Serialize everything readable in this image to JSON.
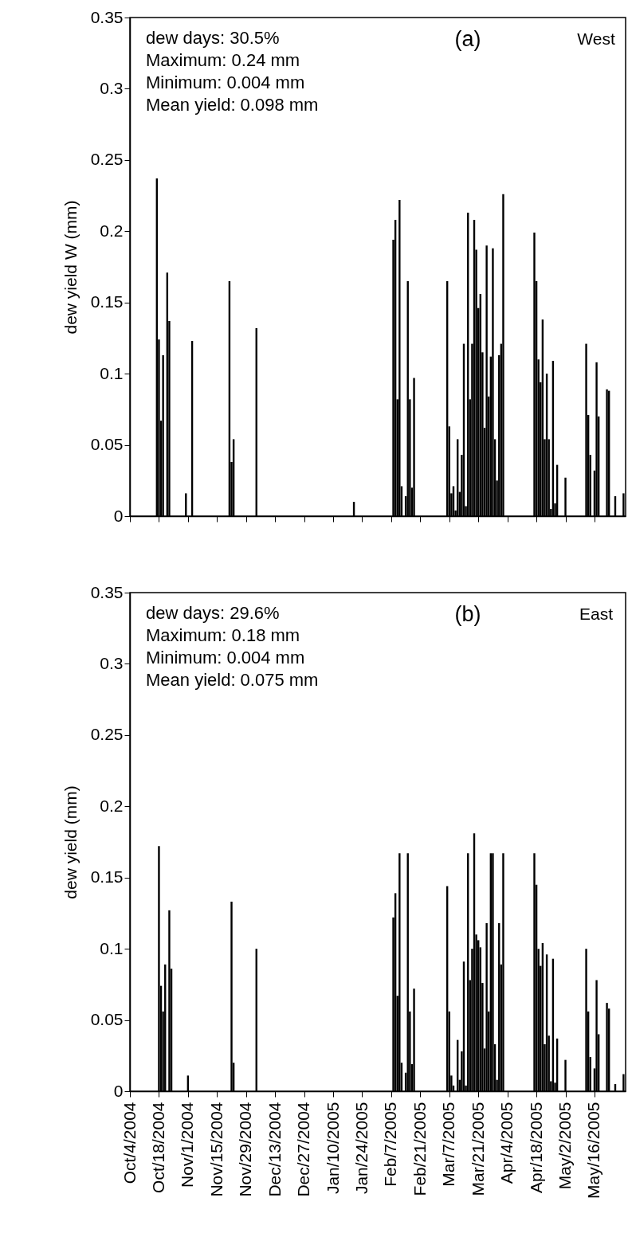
{
  "chart_data": [
    {
      "type": "bar",
      "ylabel": "dew yield W (mm)",
      "color": "#000000",
      "tick_labels": "y",
      "grid": false,
      "annotations": [
        "dew days:   30.5%",
        "Maximum:   0.24 mm",
        "Minimum:    0.004 mm",
        "Mean yield: 0.098 mm",
        "(a)",
        "West"
      ],
      "xlim": [
        "2004-10-04",
        "2005-05-31"
      ],
      "ylim": [
        0,
        0.35
      ],
      "yticks": [
        0,
        0.05,
        0.1,
        0.15,
        0.2,
        0.25,
        0.3,
        0.35
      ],
      "xticks": [
        {
          "value": "2004-10-04",
          "label": null
        },
        {
          "value": "2004-10-18",
          "label": null
        },
        {
          "value": "2004-11-01",
          "label": null
        },
        {
          "value": "2004-11-15",
          "label": null
        },
        {
          "value": "2004-11-29",
          "label": null
        },
        {
          "value": "2004-12-13",
          "label": null
        },
        {
          "value": "2004-12-27",
          "label": null
        },
        {
          "value": "2005-01-10",
          "label": null
        },
        {
          "value": "2005-01-24",
          "label": null
        },
        {
          "value": "2005-02-07",
          "label": null
        },
        {
          "value": "2005-02-21",
          "label": null
        },
        {
          "value": "2005-03-07",
          "label": null
        },
        {
          "value": "2005-03-21",
          "label": null
        },
        {
          "value": "2005-04-04",
          "label": null
        },
        {
          "value": "2005-04-18",
          "label": null
        },
        {
          "value": "2005-05-02",
          "label": null
        },
        {
          "value": "2005-05-16",
          "label": null
        }
      ],
      "x": [
        "2004-10-17",
        "2004-10-18",
        "2004-10-19",
        "2004-10-20",
        "2004-10-22",
        "2004-10-23",
        "2004-10-31",
        "2004-11-03",
        "2004-11-21",
        "2004-11-22",
        "2004-11-23",
        "2004-12-04",
        "2005-01-20",
        "2005-02-08",
        "2005-02-09",
        "2005-02-10",
        "2005-02-11",
        "2005-02-12",
        "2005-02-14",
        "2005-02-15",
        "2005-02-16",
        "2005-02-17",
        "2005-02-18",
        "2005-03-06",
        "2005-03-07",
        "2005-03-08",
        "2005-03-09",
        "2005-03-10",
        "2005-03-11",
        "2005-03-12",
        "2005-03-13",
        "2005-03-14",
        "2005-03-15",
        "2005-03-16",
        "2005-03-17",
        "2005-03-18",
        "2005-03-19",
        "2005-03-20",
        "2005-03-21",
        "2005-03-22",
        "2005-03-23",
        "2005-03-24",
        "2005-03-25",
        "2005-03-26",
        "2005-03-27",
        "2005-03-28",
        "2005-03-29",
        "2005-03-30",
        "2005-03-31",
        "2005-04-01",
        "2005-04-02",
        "2005-04-17",
        "2005-04-18",
        "2005-04-19",
        "2005-04-20",
        "2005-04-21",
        "2005-04-22",
        "2005-04-23",
        "2005-04-24",
        "2005-04-25",
        "2005-04-26",
        "2005-04-27",
        "2005-04-28",
        "2005-05-02",
        "2005-05-12",
        "2005-05-13",
        "2005-05-14",
        "2005-05-16",
        "2005-05-17",
        "2005-05-18",
        "2005-05-22",
        "2005-05-23",
        "2005-05-26",
        "2005-05-30"
      ],
      "values": [
        0.237,
        0.124,
        0.067,
        0.113,
        0.171,
        0.137,
        0.016,
        0.123,
        0.165,
        0.038,
        0.054,
        0.132,
        0.01,
        0.194,
        0.208,
        0.082,
        0.222,
        0.021,
        0.014,
        0.165,
        0.082,
        0.02,
        0.097,
        0.165,
        0.063,
        0.016,
        0.021,
        0.004,
        0.054,
        0.017,
        0.043,
        0.121,
        0.007,
        0.213,
        0.082,
        0.121,
        0.208,
        0.187,
        0.146,
        0.156,
        0.115,
        0.062,
        0.19,
        0.084,
        0.112,
        0.188,
        0.054,
        0.025,
        0.113,
        0.121,
        0.226,
        0.199,
        0.165,
        0.11,
        0.094,
        0.138,
        0.054,
        0.1,
        0.054,
        0.005,
        0.109,
        0.009,
        0.036,
        0.027,
        0.121,
        0.071,
        0.043,
        0.032,
        0.108,
        0.07,
        0.089,
        0.088,
        0.014,
        0.016
      ]
    },
    {
      "type": "bar",
      "ylabel": "dew yield (mm)",
      "color": "#000000",
      "grid": false,
      "annotations": [
        "dew days:   29.6%",
        "Maximum:    0.18 mm",
        "Minimum:     0.004 mm",
        "Mean yield: 0.075 mm",
        "(b)",
        "East"
      ],
      "xlim": [
        "2004-10-04",
        "2005-05-31"
      ],
      "ylim": [
        0,
        0.35
      ],
      "yticks": [
        0,
        0.05,
        0.1,
        0.15,
        0.2,
        0.25,
        0.3,
        0.35
      ],
      "xticks": [
        {
          "value": "2004-10-04",
          "label": "Oct/4/2004"
        },
        {
          "value": "2004-10-18",
          "label": "Oct/18/2004"
        },
        {
          "value": "2004-11-01",
          "label": "Nov/1/2004"
        },
        {
          "value": "2004-11-15",
          "label": "Nov/15/2004"
        },
        {
          "value": "2004-11-29",
          "label": "Nov/29/2004"
        },
        {
          "value": "2004-12-13",
          "label": "Dec/13/2004"
        },
        {
          "value": "2004-12-27",
          "label": "Dec/27/2004"
        },
        {
          "value": "2005-01-10",
          "label": "Jan/10/2005"
        },
        {
          "value": "2005-01-24",
          "label": "Jan/24/2005"
        },
        {
          "value": "2005-02-07",
          "label": "Feb/7/2005"
        },
        {
          "value": "2005-02-21",
          "label": "Feb/21/2005"
        },
        {
          "value": "2005-03-07",
          "label": "Mar/7/2005"
        },
        {
          "value": "2005-03-21",
          "label": "Mar/21/2005"
        },
        {
          "value": "2005-04-04",
          "label": "Apr/4/2005"
        },
        {
          "value": "2005-04-18",
          "label": "Apr/18/2005"
        },
        {
          "value": "2005-05-02",
          "label": "May/2/2005"
        },
        {
          "value": "2005-05-16",
          "label": "May/16/2005"
        }
      ],
      "x": [
        "2004-10-18",
        "2004-10-19",
        "2004-10-20",
        "2004-10-21",
        "2004-10-23",
        "2004-10-24",
        "2004-11-01",
        "2004-11-22",
        "2004-11-23",
        "2004-12-04",
        "2005-02-08",
        "2005-02-09",
        "2005-02-10",
        "2005-02-11",
        "2005-02-12",
        "2005-02-14",
        "2005-02-15",
        "2005-02-16",
        "2005-02-17",
        "2005-02-18",
        "2005-03-06",
        "2005-03-07",
        "2005-03-08",
        "2005-03-09",
        "2005-03-11",
        "2005-03-12",
        "2005-03-13",
        "2005-03-14",
        "2005-03-15",
        "2005-03-16",
        "2005-03-17",
        "2005-03-18",
        "2005-03-19",
        "2005-03-20",
        "2005-03-21",
        "2005-03-22",
        "2005-03-23",
        "2005-03-24",
        "2005-03-25",
        "2005-03-26",
        "2005-03-27",
        "2005-03-28",
        "2005-03-29",
        "2005-03-30",
        "2005-03-31",
        "2005-04-01",
        "2005-04-02",
        "2005-04-17",
        "2005-04-18",
        "2005-04-19",
        "2005-04-20",
        "2005-04-21",
        "2005-04-22",
        "2005-04-23",
        "2005-04-24",
        "2005-04-25",
        "2005-04-26",
        "2005-04-27",
        "2005-04-28",
        "2005-05-02",
        "2005-05-12",
        "2005-05-13",
        "2005-05-14",
        "2005-05-16",
        "2005-05-17",
        "2005-05-18",
        "2005-05-22",
        "2005-05-23",
        "2005-05-26",
        "2005-05-30"
      ],
      "values": [
        0.172,
        0.074,
        0.056,
        0.089,
        0.127,
        0.086,
        0.011,
        0.133,
        0.02,
        0.1,
        0.122,
        0.139,
        0.067,
        0.167,
        0.02,
        0.013,
        0.167,
        0.056,
        0.019,
        0.072,
        0.144,
        0.056,
        0.011,
        0.004,
        0.036,
        0.008,
        0.028,
        0.091,
        0.004,
        0.167,
        0.078,
        0.1,
        0.181,
        0.11,
        0.106,
        0.101,
        0.076,
        0.03,
        0.118,
        0.056,
        0.167,
        0.167,
        0.033,
        0.008,
        0.118,
        0.089,
        0.167,
        0.167,
        0.145,
        0.1,
        0.088,
        0.104,
        0.033,
        0.096,
        0.039,
        0.007,
        0.093,
        0.006,
        0.037,
        0.022,
        0.1,
        0.056,
        0.024,
        0.016,
        0.078,
        0.04,
        0.062,
        0.058,
        0.005,
        0.012
      ]
    }
  ]
}
